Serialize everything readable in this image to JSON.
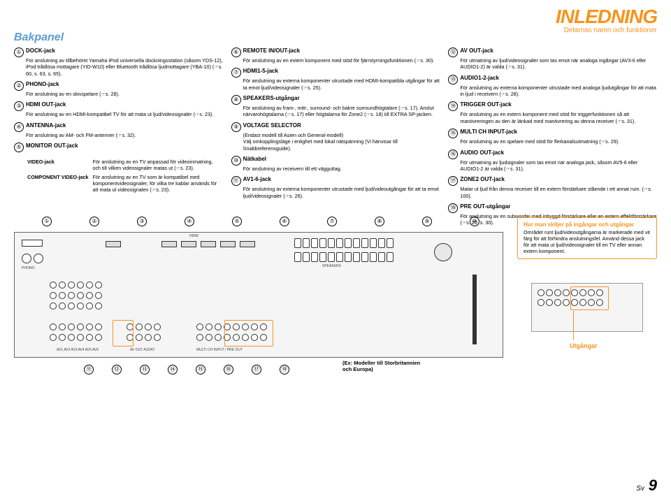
{
  "header": {
    "title": "INLEDNING",
    "subtitle": "Delarnas namn och funktioner"
  },
  "section": "Bakpanel",
  "col1": [
    {
      "n": "①",
      "t": "DOCK-jack",
      "d": "För anslutning av tillbehöret Yamaha iPod universella dockningsstation (såsom YDS-12), iPod trådlösa mottagare (YID-W10) eller Bluetooth trådlösa ljudmottagare (YBA-10) (☞s. 60, s. 63, s. 65)."
    },
    {
      "n": "②",
      "t": "PHONO-jack",
      "d": "För anslutning av en skivspelare (☞s. 28)."
    },
    {
      "n": "③",
      "t": "HDMI OUT-jack",
      "d": "För anslutning av en HDMI-kompatibel TV för att mata ut ljud/videosignaler (☞s. 23)."
    },
    {
      "n": "④",
      "t": "ANTENNA-jack",
      "d": "För anslutning av AM- och FM-antenner (☞s. 32)."
    },
    {
      "n": "⑤",
      "t": "MONITOR OUT-jack",
      "d": ""
    }
  ],
  "sub": [
    {
      "l": "VIDEO-jack",
      "d": "För anslutning av en TV anpassad för videoinmatning, och till vilken videosignaler matas ut (☞s. 23)."
    },
    {
      "l": "COMPONENT VIDEO-jack",
      "d": "För anslutning av en TV som är kompatibel med komponentvideosignaler, för vilka tre kablar används för att mata ut videosignalen (☞s. 23)."
    }
  ],
  "col2": [
    {
      "n": "⑥",
      "t": "REMOTE IN/OUT-jack",
      "d": "För anslutning av en extern komponent med stöd för fjärrstyrningsfunktionen (☞s. 30)."
    },
    {
      "n": "⑦",
      "t": "HDMI1-5-jack",
      "d": "För anslutning av externa komponenter utrustade med HDMI-kompatibla utgångar för att ta emot ljud/videosignaler (☞s. 25)."
    },
    {
      "n": "⑧",
      "t": "SPEAKERS-utgångar",
      "d": "För anslutning av fram-, mitt-, surround- och bakre surroundhögtalare (☞s. 17). Anslut närvarohögtalarna (☞s. 17) eller högtalarna för Zone2 (☞s. 18) till EXTRA SP-jacken."
    },
    {
      "n": "⑨",
      "t": "VOLTAGE SELECTOR",
      "d": "(Endast modell till Asien och General-modell)\nVälj omkopplingsläge i enlighet med lokal nätspänning (Vi hänvisar till Snabbreferensguide)."
    },
    {
      "n": "⑩",
      "t": "Nätkabel",
      "d": "För anslutning av receivern till ett vägguttag."
    },
    {
      "n": "⑪",
      "t": "AV1-6-jack",
      "d": "För anslutning av externa komponenter utrustade med ljud/videoutgångar för att ta emot ljud/videosignaler (☞s. 26)."
    }
  ],
  "col3": [
    {
      "n": "⑫",
      "t": "AV OUT-jack",
      "d": "För utmatning av ljud/videosignaler som tas emot när analoga ingångar (AV3-6 eller AUDIO1-2) är valda (☞s. 31)."
    },
    {
      "n": "⑬",
      "t": "AUDIO1-2-jack",
      "d": "För anslutning av externa komponenter utrustade med analoga ljudutgångar för att mata in ljud i receivern (☞s. 28)."
    },
    {
      "n": "⑭",
      "t": "TRIGGER OUT-jack",
      "d": "För anslutning av en extern komponent med stöd för triggerfunktionen så att manövreringen av den är länkad med manövrering av denna receiver (☞s. 31)."
    },
    {
      "n": "⑮",
      "t": "MULTI CH INPUT-jack",
      "d": "För anslutning av en spelare med stöd för flerkanalsutmatning (☞s. 29)."
    },
    {
      "n": "⑯",
      "t": "AUDIO OUT-jack",
      "d": "För utmatning av ljudsignaler som tas emot när analoga jack, såsom AV5-6 eller AUDIO1-2 är valda (☞s. 31)."
    },
    {
      "n": "⑰",
      "t": "ZONE2 OUT-jack",
      "d": "Matar ut ljud från denna receiver till en extern förstärkare stående i ett annat rum. (☞s. 100)."
    },
    {
      "n": "⑱",
      "t": "PRE OUT-utgångar",
      "d": "För anslutning av en subwoofer med inbyggd förstärkare eller en extern effektförstärkare (☞s. 20, s. 30)."
    }
  ],
  "infobox": {
    "title": "Hur man skiljer på ingångar och utgångar",
    "body": "Området runt ljud/videoutgångarna är markerade med vit färg för att förhindra anslutningsfel. Använd dessa jack för att mata ut ljud/videosignaler till en TV eller annan extern komponent."
  },
  "utlabel": "Utgångar",
  "exnote": "(Ex: Modeller till Storbritannien och Europa)",
  "toprow": [
    "①",
    "②",
    "③",
    "④",
    "⑤",
    "⑥",
    "⑦",
    "⑧",
    "⑨",
    "⑩"
  ],
  "botrow": [
    "⑪",
    "⑫",
    "⑬",
    "⑭",
    "⑮",
    "⑯",
    "⑰",
    "⑱"
  ],
  "page": {
    "prefix": "Sv",
    "num": "9"
  },
  "colors": {
    "accent": "#f7941d",
    "link": "#5b9bd5"
  }
}
